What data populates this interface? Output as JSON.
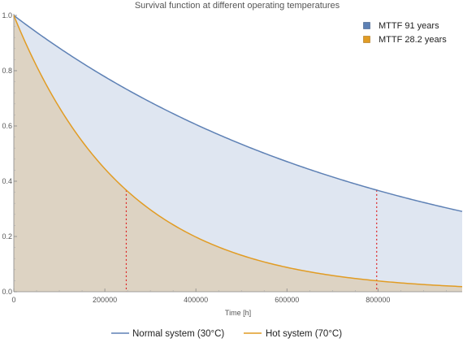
{
  "chart_data": {
    "type": "area",
    "title": "Survival function at different operating temperatures",
    "xlabel": "Time [h]",
    "ylabel": "",
    "xlim": [
      0,
      985000
    ],
    "ylim": [
      0,
      1.0
    ],
    "x_ticks": [
      0,
      200000,
      400000,
      600000,
      800000
    ],
    "x_tick_labels": [
      "0",
      "200000",
      "400000",
      "600000",
      "800000"
    ],
    "y_ticks": [
      0.0,
      0.2,
      0.4,
      0.6,
      0.8,
      1.0
    ],
    "y_tick_labels": [
      "0.0",
      "0.2",
      "0.4",
      "0.6",
      "0.8",
      "1.0"
    ],
    "grid": false,
    "series": [
      {
        "name": "Normal system (30°C)",
        "legend_label": "MTTF 91 years",
        "mttf_hours": 797160,
        "color": "#5E81B5",
        "fill": "#DFE6F1",
        "x": [
          0,
          100000,
          200000,
          300000,
          400000,
          500000,
          600000,
          700000,
          800000,
          900000,
          985000
        ],
        "y": [
          1.0,
          0.882,
          0.778,
          0.686,
          0.605,
          0.534,
          0.471,
          0.415,
          0.366,
          0.323,
          0.29
        ]
      },
      {
        "name": "Hot system (70°C)",
        "legend_label": "MTTF 28.2 years",
        "mttf_hours": 247032,
        "color": "#E19C24",
        "fill": "#DDD3C3",
        "x": [
          0,
          50000,
          100000,
          150000,
          200000,
          250000,
          300000,
          400000,
          500000,
          600000,
          700000,
          800000,
          900000,
          985000
        ],
        "y": [
          1.0,
          0.817,
          0.667,
          0.545,
          0.445,
          0.363,
          0.297,
          0.198,
          0.132,
          0.088,
          0.059,
          0.039,
          0.026,
          0.019
        ]
      }
    ],
    "annotations": [
      {
        "type": "vline",
        "x": 247032,
        "y": 0.368,
        "color": "#DD2222"
      },
      {
        "type": "vline",
        "x": 797160,
        "y": 0.368,
        "color": "#DD2222"
      }
    ],
    "legend_top": {
      "placement": "top-right"
    },
    "legend_bottom": {
      "placement": "bottom"
    }
  }
}
